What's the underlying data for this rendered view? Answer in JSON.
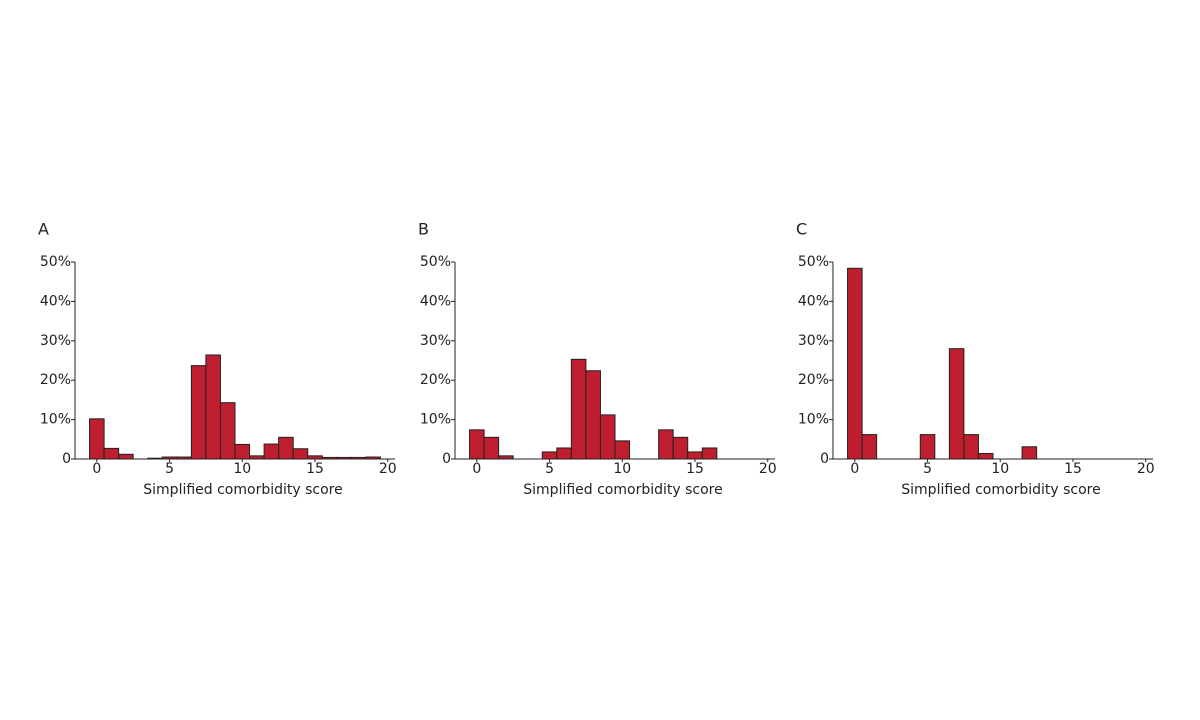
{
  "chart_data": [
    {
      "type": "histogram",
      "title": "A",
      "xlabel": "Simplified comorbidity score",
      "color": "#be1e2d",
      "bins": [
        -0.5,
        0.5,
        1.5,
        2.5,
        3.5,
        4.5,
        5.5,
        6.5,
        7.5,
        8.5,
        9.5,
        10.5,
        11.5,
        12.5,
        13.5,
        14.5,
        15.5,
        16.5,
        17.5,
        18.5,
        19.5
      ],
      "values": [
        10.2,
        2.7,
        1.2,
        0,
        0.2,
        0.5,
        0.5,
        23.7,
        26.4,
        14.3,
        3.7,
        0.8,
        3.8,
        5.5,
        2.6,
        0.8,
        0.4,
        0.4,
        0.4,
        0.5
      ],
      "xlim": [
        -1.5,
        20.5
      ],
      "xticks": [
        0,
        5,
        10,
        15,
        20
      ],
      "ylim": [
        0,
        50
      ],
      "yticks": [
        0,
        {
          "value": 10,
          "label": "10%"
        },
        {
          "value": 20,
          "label": "20%"
        },
        {
          "value": 30,
          "label": "30%"
        },
        {
          "value": 40,
          "label": "40%"
        },
        {
          "value": 50,
          "label": "50%"
        }
      ]
    },
    {
      "type": "histogram",
      "title": "B",
      "xlabel": "Simplified comorbidity score",
      "color": "#be1e2d",
      "bins": [
        -0.5,
        0.5,
        1.5,
        2.5,
        3.5,
        4.5,
        5.5,
        6.5,
        7.5,
        8.5,
        9.5,
        10.5,
        11.5,
        12.5,
        13.5,
        14.5,
        15.5,
        16.5,
        17.5,
        18.5,
        19.5
      ],
      "values": [
        7.4,
        5.5,
        0.8,
        0,
        0,
        1.8,
        2.8,
        25.3,
        22.4,
        11.2,
        4.6,
        0,
        0,
        7.4,
        5.5,
        1.8,
        2.8,
        0,
        0,
        0
      ],
      "xlim": [
        -1.5,
        20.5
      ],
      "xticks": [
        0,
        5,
        10,
        15,
        20
      ],
      "ylim": [
        0,
        50
      ],
      "yticks": [
        0,
        {
          "value": 10,
          "label": "10%"
        },
        {
          "value": 20,
          "label": "20%"
        },
        {
          "value": 30,
          "label": "30%"
        },
        {
          "value": 40,
          "label": "40%"
        },
        {
          "value": 50,
          "label": "50%"
        }
      ]
    },
    {
      "type": "histogram",
      "title": "C",
      "xlabel": "Simplified comorbidity score",
      "color": "#be1e2d",
      "bins": [
        -0.5,
        0.5,
        1.5,
        2.5,
        3.5,
        4.5,
        5.5,
        6.5,
        7.5,
        8.5,
        9.5,
        10.5,
        11.5,
        12.5,
        13.5,
        14.5,
        15.5,
        16.5,
        17.5,
        18.5,
        19.5
      ],
      "values": [
        48.4,
        6.2,
        0,
        0,
        0,
        6.2,
        0,
        28,
        6.2,
        1.4,
        0,
        0,
        3.1,
        0,
        0,
        0,
        0,
        0,
        0,
        0
      ],
      "xlim": [
        -1.5,
        20.5
      ],
      "xticks": [
        0,
        5,
        10,
        15,
        20
      ],
      "ylim": [
        0,
        50
      ],
      "yticks": [
        0,
        {
          "value": 10,
          "label": "10%"
        },
        {
          "value": 20,
          "label": "20%"
        },
        {
          "value": 30,
          "label": "30%"
        },
        {
          "value": 40,
          "label": "40%"
        },
        {
          "value": 50,
          "label": "50%"
        }
      ]
    }
  ]
}
